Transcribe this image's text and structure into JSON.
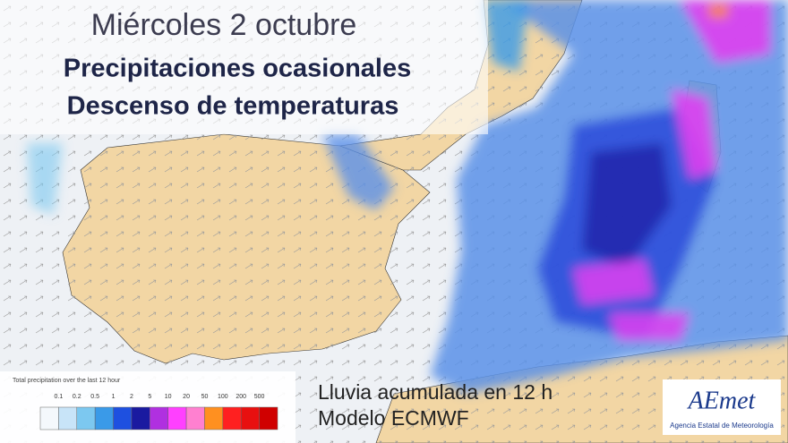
{
  "header": {
    "date": "Miércoles 2 octubre",
    "lines": [
      "Precipitaciones ocasionales",
      "Descenso de temperaturas"
    ]
  },
  "legend": {
    "title": "Total precipitation over the last 12 hour",
    "labels": [
      0.1,
      0.2,
      0.5,
      1,
      2,
      5,
      10,
      20,
      50,
      100,
      200,
      500
    ],
    "colors": [
      "#f4f8fc",
      "#c8e4f8",
      "#7cc8f0",
      "#3a9ae8",
      "#1e50e0",
      "#1a1aa0",
      "#b030e0",
      "#ff40ff",
      "#ff80d0",
      "#ff9020",
      "#ff2020",
      "#e81010",
      "#d00000"
    ]
  },
  "footer": {
    "lines": [
      "Lluvia acumulada en 12 h",
      "Modelo ECMWF"
    ]
  },
  "logo": {
    "name": "AEmet",
    "subtitle": "Agencia Estatal de Meteorología"
  }
}
